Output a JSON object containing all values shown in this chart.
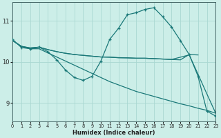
{
  "background_color": "#cceee8",
  "grid_color": "#aad8d2",
  "line_color": "#1a7878",
  "xlabel": "Humidex (Indice chaleur)",
  "xlim": [
    0,
    23
  ],
  "ylim": [
    8.55,
    11.45
  ],
  "yticks": [
    9,
    10,
    11
  ],
  "xticks": [
    0,
    1,
    2,
    3,
    4,
    5,
    6,
    7,
    8,
    9,
    10,
    11,
    12,
    13,
    14,
    15,
    16,
    17,
    18,
    19,
    20,
    21,
    22,
    23
  ],
  "s1_x": [
    0,
    1,
    2,
    3,
    4,
    5,
    6,
    7,
    8,
    9,
    10,
    11,
    12,
    13,
    14,
    15,
    16,
    17,
    18,
    19,
    20,
    21,
    22,
    23
  ],
  "s1_y": [
    10.52,
    10.38,
    10.32,
    10.32,
    10.22,
    10.12,
    10.02,
    9.92,
    9.82,
    9.72,
    9.62,
    9.52,
    9.44,
    9.36,
    9.28,
    9.22,
    9.16,
    9.1,
    9.04,
    8.98,
    8.93,
    8.87,
    8.82,
    8.75
  ],
  "s2_x": [
    0,
    1,
    2,
    3,
    4,
    5,
    6,
    7,
    8,
    9,
    10,
    11,
    12,
    13,
    14,
    15,
    16,
    17,
    18,
    19,
    20,
    21
  ],
  "s2_y": [
    10.52,
    10.38,
    10.34,
    10.36,
    10.3,
    10.25,
    10.21,
    10.18,
    10.16,
    10.14,
    10.12,
    10.12,
    10.1,
    10.1,
    10.09,
    10.09,
    10.08,
    10.07,
    10.06,
    10.05,
    10.18,
    10.17
  ],
  "s3_x": [
    0,
    1,
    2,
    3,
    4,
    5,
    6,
    7,
    8,
    9,
    10,
    14,
    15,
    16,
    17,
    18,
    20,
    21,
    22,
    23
  ],
  "s3_y": [
    10.52,
    10.38,
    10.34,
    10.36,
    10.3,
    10.25,
    10.21,
    10.18,
    10.16,
    10.14,
    10.12,
    10.09,
    10.09,
    10.08,
    10.07,
    10.06,
    10.17,
    9.7,
    9.22,
    8.75
  ],
  "s4_x": [
    0,
    1,
    2,
    3,
    4,
    5,
    6,
    7,
    8,
    9,
    10,
    11,
    12,
    13,
    14,
    15,
    16,
    17,
    18,
    19,
    20,
    21,
    22,
    23
  ],
  "s4_y": [
    10.55,
    10.35,
    10.32,
    10.36,
    10.25,
    10.05,
    9.8,
    9.62,
    9.55,
    9.65,
    10.02,
    10.55,
    10.82,
    11.15,
    11.2,
    11.28,
    11.32,
    11.1,
    10.85,
    10.52,
    10.18,
    9.65,
    8.8,
    8.68
  ],
  "marker_x": [
    0,
    1,
    2,
    3,
    4,
    5,
    6,
    7,
    8,
    9,
    10,
    11,
    12,
    13,
    14,
    15,
    16,
    17,
    20,
    21,
    22,
    23
  ],
  "marker_y": [
    10.55,
    10.35,
    10.32,
    10.36,
    10.25,
    10.05,
    9.8,
    9.62,
    9.55,
    9.65,
    10.02,
    10.55,
    10.82,
    11.15,
    11.2,
    11.28,
    11.32,
    11.1,
    10.18,
    9.65,
    8.8,
    8.68
  ]
}
